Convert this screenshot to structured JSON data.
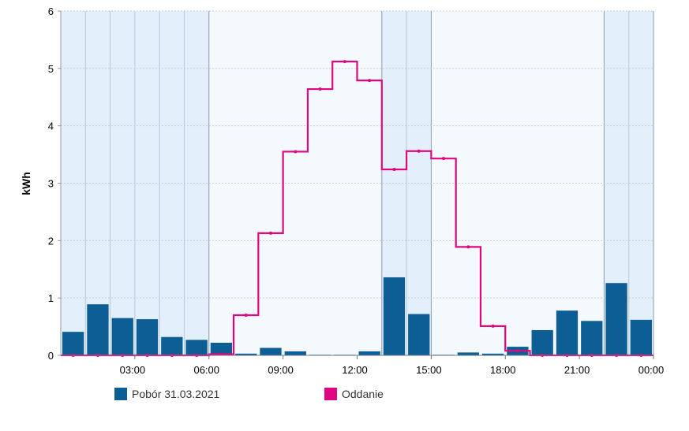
{
  "chart_data": {
    "type": "bar",
    "ylabel": "kWh",
    "ylim": [
      0,
      6
    ],
    "yticks": [
      0,
      1,
      2,
      3,
      4,
      5,
      6
    ],
    "xtick_labels": [
      "03:00",
      "06:00",
      "09:00",
      "12:00",
      "15:00",
      "18:00",
      "21:00",
      "00:00"
    ],
    "xtick_hours": [
      3,
      6,
      9,
      12,
      15,
      18,
      21,
      24
    ],
    "hours_shown": 24,
    "grid": true,
    "shaded_hour_ranges": [
      [
        0,
        6
      ],
      [
        13,
        15
      ],
      [
        22,
        24
      ]
    ],
    "series": [
      {
        "name": "Pobór 31.03.2021",
        "type": "bar",
        "color": "#0e5e96",
        "values": [
          0.41,
          0.89,
          0.65,
          0.63,
          0.32,
          0.27,
          0.22,
          0.03,
          0.13,
          0.07,
          0.01,
          0.01,
          0.07,
          1.36,
          0.72,
          0.01,
          0.05,
          0.03,
          0.15,
          0.44,
          0.78,
          0.6,
          1.26,
          0.62
        ]
      },
      {
        "name": "Oddanie",
        "type": "step",
        "color": "#e0067f",
        "values": [
          0,
          0,
          0,
          0,
          0,
          0,
          0.02,
          0.7,
          2.13,
          3.55,
          4.64,
          5.12,
          4.79,
          3.24,
          3.56,
          3.43,
          1.89,
          0.51,
          0.08,
          0,
          0,
          0,
          0,
          0
        ]
      }
    ],
    "legend_position": "bottom-left"
  }
}
